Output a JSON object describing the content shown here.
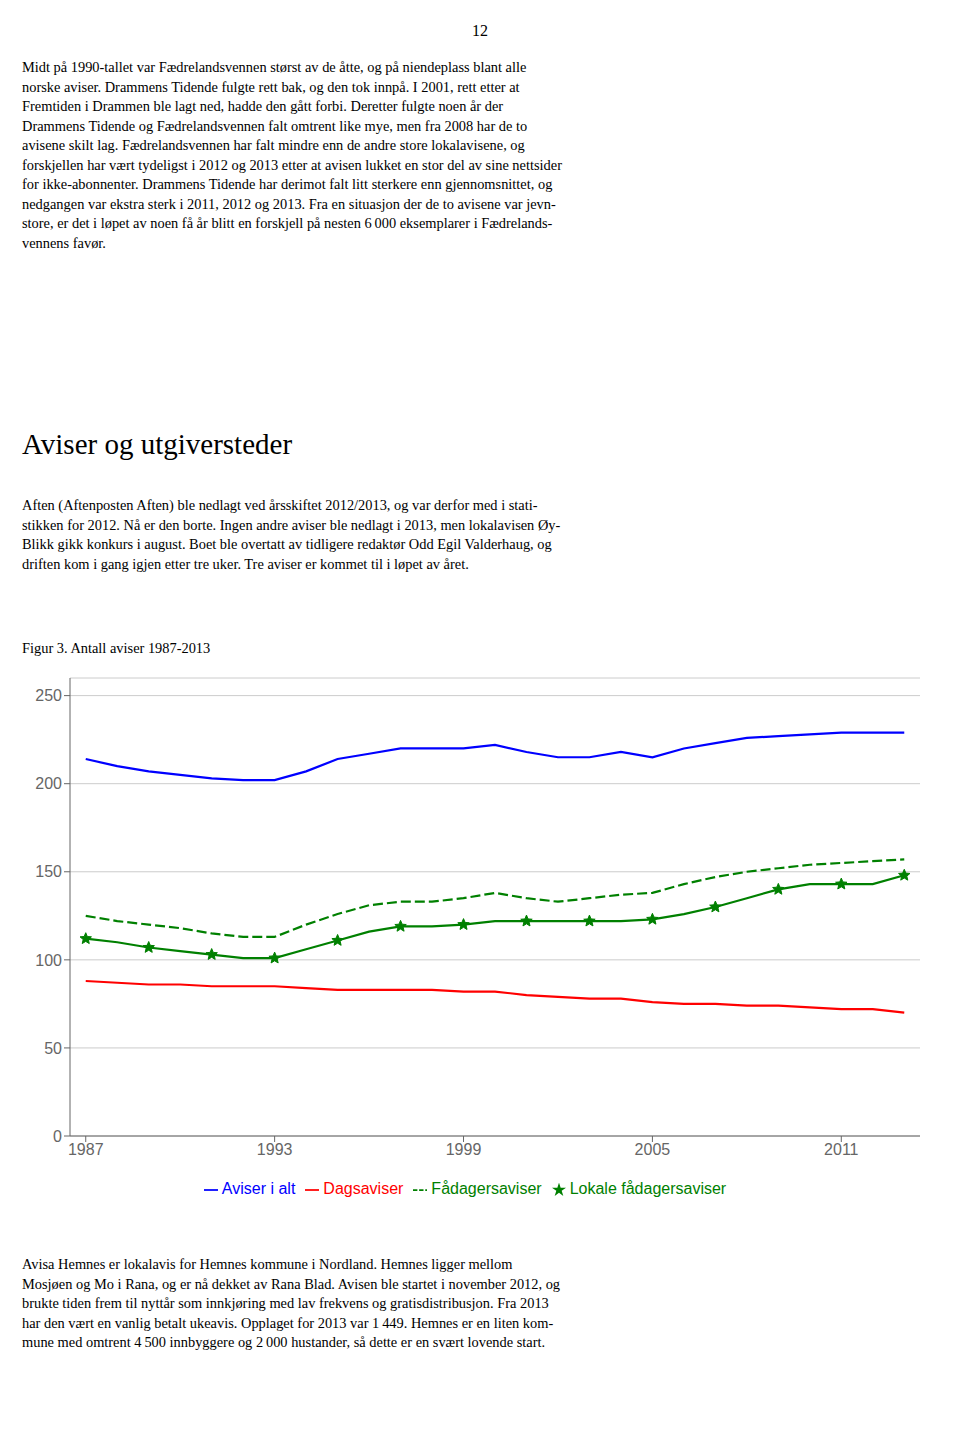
{
  "page_number": "12",
  "body_text_top_lines": [
    "Midt på 1990-tallet var Fædrelandsvennen størst av de åtte, og på niendeplass blant alle",
    "norske aviser. Drammens Tidende fulgte rett bak, og den tok innpå. I 2001, rett etter at",
    "Fremtiden i Drammen ble lagt ned, hadde den gått forbi. Deretter fulgte noen år der",
    "Drammens Tidende og Fædrelandsvennen falt omtrent like mye, men fra 2008 har de to",
    "avisene skilt lag. Fædrelandsvennen har falt mindre enn de andre store lokalavisene, og",
    "forskjellen har vært tydeligst i 2012 og 2013 etter at avisen lukket en stor del av sine nettsider",
    "for ikke-abonnenter. Drammens Tidende har derimot falt litt sterkere enn gjennomsnittet, og",
    "nedgangen var ekstra sterk i 2011, 2012 og 2013. Fra en situasjon der de to avisene var jevn-",
    "store, er det i løpet av noen få år blitt en forskjell på nesten 6 000 eksemplarer i Fædrelands-",
    "vennens favør."
  ],
  "section_title": "Aviser og utgiversteder",
  "section_body_lines": [
    "Aften (Aftenposten Aften) ble nedlagt ved årsskiftet 2012/2013, og var derfor med i stati-",
    "stikken for 2012. Nå er den borte. Ingen andre aviser ble nedlagt i 2013, men lokalavisen Øy-",
    "Blikk gikk konkurs i august. Boet ble overtatt av tidligere redaktør Odd Egil Valderhaug, og",
    "driften kom i gang igjen etter tre uker. Tre aviser er kommet til i løpet av året."
  ],
  "body_text_bottom_lines": [
    "Avisa Hemnes er lokalavis for Hemnes kommune i Nordland. Hemnes ligger mellom",
    "Mosjøen og Mo i Rana, og er nå dekket av Rana Blad. Avisen ble startet i november 2012, og",
    "brukte tiden frem til nyttår som innkjøring med lav frekvens og gratisdistribusjon. Fra 2013",
    "har den vært en vanlig betalt ukeavis. Opplaget for 2013 var 1 449. Hemnes er en liten kom-",
    "mune med omtrent 4 500 innbyggere og 2 000 hustander, så dette er en svært lovende start."
  ],
  "chart_data": {
    "type": "line",
    "title": "Figur 3. Antall aviser 1987-2013",
    "x": [
      1987,
      1988,
      1989,
      1990,
      1991,
      1992,
      1993,
      1994,
      1995,
      1996,
      1997,
      1998,
      1999,
      2000,
      2001,
      2002,
      2003,
      2004,
      2005,
      2006,
      2007,
      2008,
      2009,
      2010,
      2011,
      2012,
      2013
    ],
    "series": [
      {
        "name": "Aviser i alt",
        "color": "#0000FF",
        "values": [
          214,
          210,
          207,
          205,
          203,
          202,
          202,
          207,
          214,
          217,
          220,
          220,
          220,
          222,
          218,
          215,
          215,
          218,
          215,
          220,
          223,
          226,
          227,
          228,
          229,
          229,
          229
        ]
      },
      {
        "name": "Dagsaviser",
        "color": "#FF0000",
        "values": [
          88,
          87,
          86,
          86,
          85,
          85,
          85,
          84,
          83,
          83,
          83,
          83,
          82,
          82,
          80,
          79,
          78,
          78,
          76,
          75,
          75,
          74,
          74,
          73,
          72,
          72,
          70
        ]
      },
      {
        "name": "Lokale fådagersaviser",
        "color": "#008000",
        "marker": "star",
        "values": [
          112,
          110,
          107,
          105,
          103,
          101,
          101,
          106,
          111,
          116,
          119,
          119,
          120,
          122,
          122,
          122,
          122,
          122,
          123,
          126,
          130,
          135,
          140,
          143,
          143,
          143,
          148
        ]
      },
      {
        "name": "Fådagersaviser",
        "color": "#008000",
        "line_style": "dashed",
        "values": [
          125,
          122,
          120,
          118,
          115,
          113,
          113,
          120,
          126,
          131,
          133,
          133,
          135,
          138,
          135,
          133,
          135,
          137,
          138,
          143,
          147,
          150,
          152,
          154,
          155,
          156,
          157
        ]
      }
    ],
    "xlim": [
      1986.5,
      2013.5
    ],
    "xticks": [
      1987,
      1993,
      1999,
      2005,
      2011
    ],
    "ylim": [
      0,
      260
    ],
    "yticks": [
      0,
      50,
      100,
      150,
      200,
      250
    ],
    "grid": "y",
    "legend": "bottom"
  }
}
